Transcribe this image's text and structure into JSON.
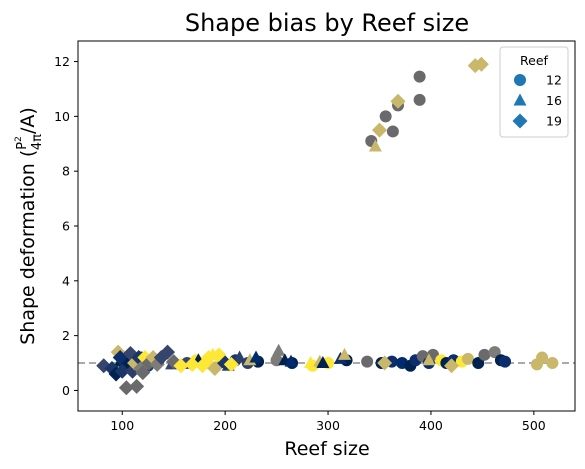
{
  "chart_data": {
    "type": "scatter",
    "title": "Shape bias by Reef size",
    "xlabel": "Reef size",
    "ylabel_prefix": "Shape deformation (",
    "ylabel_frac_num": "P",
    "ylabel_frac_num_exp": "2",
    "ylabel_frac_den": "4π",
    "ylabel_suffix": "/A)",
    "xlim": [
      57,
      540
    ],
    "ylim": [
      -0.75,
      12.75
    ],
    "xticks": [
      100,
      200,
      300,
      400,
      500
    ],
    "yticks": [
      0,
      2,
      4,
      6,
      8,
      10,
      12
    ],
    "reference_line": {
      "y": 1.0,
      "style": "dashed",
      "color": "#aaaaaa"
    },
    "legend": {
      "title": "Reef",
      "position": "top-right",
      "entries": [
        {
          "label": "12",
          "marker": "circle"
        },
        {
          "label": "16",
          "marker": "triangle"
        },
        {
          "label": "19",
          "marker": "diamond"
        }
      ],
      "marker_color": "#1f77b4"
    },
    "colormap": "cividis",
    "series": [
      {
        "marker": "circle",
        "points": [
          [
            104,
            1.0,
            "#00224e"
          ],
          [
            110,
            1.1,
            "#001f4a"
          ],
          [
            118,
            1.2,
            "#0d2e6c"
          ],
          [
            125,
            0.9,
            "#1a3668"
          ],
          [
            135,
            1.05,
            "#2b3f6a"
          ],
          [
            163,
            1.0,
            "#35456c"
          ],
          [
            172,
            1.1,
            "#fde737"
          ],
          [
            183,
            1.0,
            "#f0dc49"
          ],
          [
            195,
            1.2,
            "#fde737"
          ],
          [
            210,
            1.1,
            "#1a3668"
          ],
          [
            222,
            1.0,
            "#2b3f6a"
          ],
          [
            232,
            1.05,
            "#00224e"
          ],
          [
            250,
            1.1,
            "#7d7c78"
          ],
          [
            265,
            1.0,
            "#00224e"
          ],
          [
            285,
            0.9,
            "#fde737"
          ],
          [
            300,
            1.0,
            "#fde737"
          ],
          [
            318,
            1.1,
            "#00224e"
          ],
          [
            338,
            1.05,
            "#6a6a6d"
          ],
          [
            352,
            1.0,
            "#00224e"
          ],
          [
            362,
            1.05,
            "#0d2e6c"
          ],
          [
            372,
            1.0,
            "#002c6e"
          ],
          [
            380,
            0.9,
            "#00224e"
          ],
          [
            385,
            1.1,
            "#0d2e6c"
          ],
          [
            392,
            1.25,
            "#6a6a6d"
          ],
          [
            398,
            1.0,
            "#0d2e6c"
          ],
          [
            402,
            1.3,
            "#6a6a6d"
          ],
          [
            410,
            1.1,
            "#fde737"
          ],
          [
            415,
            1.0,
            "#00224e"
          ],
          [
            422,
            1.1,
            "#0d2e6c"
          ],
          [
            430,
            1.05,
            "#fde737"
          ],
          [
            436,
            1.15,
            "#c9b869"
          ],
          [
            446,
            1.0,
            "#00224e"
          ],
          [
            452,
            1.3,
            "#6a6a6d"
          ],
          [
            462,
            1.4,
            "#7d7c78"
          ],
          [
            468,
            1.1,
            "#00224e"
          ],
          [
            472,
            1.05,
            "#0d2e6c"
          ],
          [
            503,
            0.95,
            "#c9b869"
          ],
          [
            508,
            1.2,
            "#c9b869"
          ],
          [
            518,
            1.0,
            "#c9b869"
          ],
          [
            342,
            9.1,
            "#6a6a6d"
          ],
          [
            356,
            10.0,
            "#6a6a6d"
          ],
          [
            363,
            9.45,
            "#6a6a6d"
          ],
          [
            368,
            10.4,
            "#6a6a6d"
          ],
          [
            389,
            10.6,
            "#6a6a6d"
          ],
          [
            389,
            11.45,
            "#6a6a6d"
          ]
        ]
      },
      {
        "marker": "triangle",
        "points": [
          [
            98,
            1.05,
            "#00224e"
          ],
          [
            120,
            1.1,
            "#2b3f6a"
          ],
          [
            148,
            0.95,
            "#35456c"
          ],
          [
            174,
            1.1,
            "#00224e"
          ],
          [
            188,
            1.3,
            "#fde737"
          ],
          [
            196,
            1.0,
            "#1a3668"
          ],
          [
            203,
            0.9,
            "#35456c"
          ],
          [
            214,
            1.2,
            "#2b3f6a"
          ],
          [
            224,
            1.1,
            "#c9b869"
          ],
          [
            230,
            1.2,
            "#002c6e"
          ],
          [
            252,
            1.45,
            "#7d7c78"
          ],
          [
            258,
            1.1,
            "#00224e"
          ],
          [
            264,
            1.05,
            "#002c6e"
          ],
          [
            283,
            1.0,
            "#fde737"
          ],
          [
            292,
            1.05,
            "#c9b869"
          ],
          [
            295,
            1.0,
            "#00224e"
          ],
          [
            312,
            1.15,
            "#0d2e6c"
          ],
          [
            316,
            1.3,
            "#c9b869"
          ],
          [
            346,
            8.9,
            "#c9b869"
          ],
          [
            398,
            1.1,
            "#c9b869"
          ]
        ]
      },
      {
        "marker": "diamond",
        "points": [
          [
            82,
            0.9,
            "#35456c"
          ],
          [
            90,
            0.8,
            "#1a3668"
          ],
          [
            94,
            0.6,
            "#00224e"
          ],
          [
            96,
            1.4,
            "#c9b869"
          ],
          [
            98,
            1.2,
            "#0d2e6c"
          ],
          [
            100,
            0.7,
            "#1a3668"
          ],
          [
            104,
            0.1,
            "#6a6a6d"
          ],
          [
            108,
            1.35,
            "#35456c"
          ],
          [
            110,
            0.7,
            "#2b3f6a"
          ],
          [
            112,
            1.0,
            "#c9b869"
          ],
          [
            114,
            0.15,
            "#6a6a6d"
          ],
          [
            116,
            1.2,
            "#1a3668"
          ],
          [
            118,
            0.8,
            "#7d7c78"
          ],
          [
            120,
            0.65,
            "#6a6a6d"
          ],
          [
            122,
            1.2,
            "#fde737"
          ],
          [
            126,
            1.0,
            "#6a6a6d"
          ],
          [
            130,
            1.2,
            "#c9b869"
          ],
          [
            134,
            0.95,
            "#7d7c78"
          ],
          [
            138,
            1.2,
            "#35456c"
          ],
          [
            144,
            1.4,
            "#35456c"
          ],
          [
            150,
            1.05,
            "#6a6a6d"
          ],
          [
            157,
            0.9,
            "#fde737"
          ],
          [
            168,
            0.95,
            "#fde737"
          ],
          [
            178,
            0.9,
            "#fde737"
          ],
          [
            184,
            1.2,
            "#fde737"
          ],
          [
            190,
            0.8,
            "#c9b869"
          ],
          [
            194,
            1.3,
            "#fde737"
          ],
          [
            200,
            1.0,
            "#1a3668"
          ],
          [
            206,
            0.95,
            "#fde737"
          ],
          [
            355,
            1.0,
            "#c9b869"
          ],
          [
            420,
            0.9,
            "#c9b869"
          ],
          [
            350,
            9.5,
            "#c9b869"
          ],
          [
            368,
            10.55,
            "#c9b869"
          ],
          [
            443,
            11.85,
            "#c9b869"
          ],
          [
            449,
            11.9,
            "#c9b869"
          ]
        ]
      }
    ]
  }
}
